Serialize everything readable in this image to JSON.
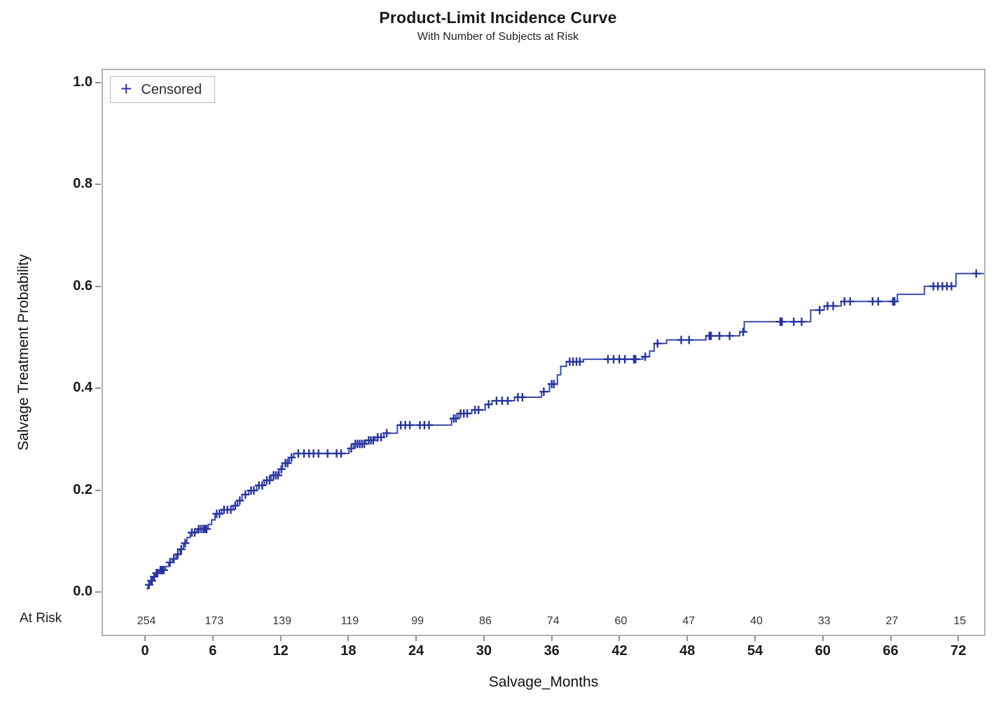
{
  "title": "Product-Limit Incidence Curve",
  "subtitle": "With Number of Subjects at Risk",
  "legend": {
    "marker": "+",
    "label": "Censored"
  },
  "colors": {
    "curve": "#3a4aae",
    "censor": "#2734a0",
    "frame": "#b3b3b3",
    "tick": "#8f8f8f",
    "text": "#1a1a1a"
  },
  "chart_data": {
    "type": "line",
    "subtype": "step-incidence-curve",
    "title": "Product-Limit Incidence Curve",
    "subtitle": "With Number of Subjects at Risk",
    "xlabel": "Salvage_Months",
    "ylabel": "Salvage Treatment Probability",
    "xlim": [
      -3.85,
      74.4
    ],
    "ylim": [
      -0.0866,
      1.0275
    ],
    "grid": false,
    "legend_position": "inside-top-left",
    "x_ticks": [
      0,
      6,
      12,
      18,
      24,
      30,
      36,
      42,
      48,
      54,
      60,
      66,
      72
    ],
    "y_ticks": [
      {
        "value": 1.0,
        "label": "1.0"
      },
      {
        "value": 0.8,
        "label": "0.8"
      },
      {
        "value": 0.6,
        "label": "0.6"
      },
      {
        "value": 0.4,
        "label": "0.4"
      },
      {
        "value": 0.2,
        "label": "0.2"
      },
      {
        "value": 0.0,
        "label": "0.0"
      }
    ],
    "at_risk_label": "At Risk",
    "at_risk": [
      254,
      173,
      139,
      119,
      99,
      86,
      74,
      60,
      47,
      40,
      33,
      27,
      15
    ],
    "steps": [
      [
        0.0,
        0.004
      ],
      [
        0.15,
        0.012
      ],
      [
        0.35,
        0.02
      ],
      [
        0.6,
        0.028
      ],
      [
        0.8,
        0.035
      ],
      [
        1.15,
        0.041
      ],
      [
        1.7,
        0.048
      ],
      [
        2.0,
        0.056
      ],
      [
        2.3,
        0.063
      ],
      [
        2.65,
        0.072
      ],
      [
        3.0,
        0.082
      ],
      [
        3.3,
        0.094
      ],
      [
        3.6,
        0.105
      ],
      [
        3.9,
        0.115
      ],
      [
        4.5,
        0.122
      ],
      [
        5.5,
        0.131
      ],
      [
        5.8,
        0.14
      ],
      [
        6.1,
        0.152
      ],
      [
        6.7,
        0.16
      ],
      [
        7.7,
        0.168
      ],
      [
        8.1,
        0.178
      ],
      [
        8.5,
        0.19
      ],
      [
        9.1,
        0.198
      ],
      [
        9.8,
        0.208
      ],
      [
        10.5,
        0.218
      ],
      [
        11.1,
        0.228
      ],
      [
        11.8,
        0.24
      ],
      [
        12.1,
        0.252
      ],
      [
        12.7,
        0.263
      ],
      [
        13.1,
        0.271
      ],
      [
        18.0,
        0.281
      ],
      [
        18.4,
        0.29
      ],
      [
        19.5,
        0.297
      ],
      [
        20.3,
        0.303
      ],
      [
        21.1,
        0.311
      ],
      [
        22.3,
        0.327
      ],
      [
        27.1,
        0.34
      ],
      [
        27.7,
        0.35
      ],
      [
        28.9,
        0.357
      ],
      [
        30.1,
        0.368
      ],
      [
        30.7,
        0.375
      ],
      [
        32.7,
        0.382
      ],
      [
        35.1,
        0.393
      ],
      [
        35.8,
        0.408
      ],
      [
        36.5,
        0.426
      ],
      [
        36.8,
        0.443
      ],
      [
        37.3,
        0.452
      ],
      [
        38.8,
        0.457
      ],
      [
        44.1,
        0.462
      ],
      [
        44.7,
        0.473
      ],
      [
        45.1,
        0.488
      ],
      [
        46.2,
        0.495
      ],
      [
        49.7,
        0.503
      ],
      [
        52.7,
        0.511
      ],
      [
        53.1,
        0.531
      ],
      [
        59.0,
        0.554
      ],
      [
        60.2,
        0.562
      ],
      [
        61.7,
        0.571
      ],
      [
        66.7,
        0.585
      ],
      [
        69.1,
        0.601
      ],
      [
        71.9,
        0.626
      ],
      [
        74.4,
        0.626
      ]
    ],
    "censors": [
      [
        0.25,
        0.012
      ],
      [
        0.45,
        0.02
      ],
      [
        0.5,
        0.02
      ],
      [
        0.7,
        0.028
      ],
      [
        0.9,
        0.035
      ],
      [
        1.0,
        0.035
      ],
      [
        1.25,
        0.041
      ],
      [
        1.4,
        0.041
      ],
      [
        1.55,
        0.041
      ],
      [
        2.1,
        0.056
      ],
      [
        2.45,
        0.063
      ],
      [
        2.8,
        0.072
      ],
      [
        3.1,
        0.082
      ],
      [
        3.45,
        0.094
      ],
      [
        4.05,
        0.115
      ],
      [
        4.3,
        0.115
      ],
      [
        4.65,
        0.122
      ],
      [
        4.85,
        0.122
      ],
      [
        5.05,
        0.122
      ],
      [
        5.2,
        0.122
      ],
      [
        5.35,
        0.122
      ],
      [
        6.25,
        0.152
      ],
      [
        6.5,
        0.152
      ],
      [
        6.9,
        0.16
      ],
      [
        7.2,
        0.16
      ],
      [
        7.5,
        0.16
      ],
      [
        7.9,
        0.168
      ],
      [
        8.3,
        0.178
      ],
      [
        8.8,
        0.19
      ],
      [
        9.3,
        0.198
      ],
      [
        9.55,
        0.198
      ],
      [
        10.0,
        0.208
      ],
      [
        10.3,
        0.208
      ],
      [
        10.7,
        0.218
      ],
      [
        10.95,
        0.218
      ],
      [
        11.3,
        0.228
      ],
      [
        11.5,
        0.228
      ],
      [
        11.7,
        0.228
      ],
      [
        12.0,
        0.24
      ],
      [
        12.35,
        0.252
      ],
      [
        12.55,
        0.252
      ],
      [
        12.9,
        0.263
      ],
      [
        13.5,
        0.271
      ],
      [
        14.0,
        0.271
      ],
      [
        14.45,
        0.271
      ],
      [
        14.85,
        0.271
      ],
      [
        15.3,
        0.271
      ],
      [
        16.1,
        0.271
      ],
      [
        16.9,
        0.271
      ],
      [
        17.3,
        0.271
      ],
      [
        18.2,
        0.281
      ],
      [
        18.55,
        0.29
      ],
      [
        18.75,
        0.29
      ],
      [
        18.95,
        0.29
      ],
      [
        19.15,
        0.29
      ],
      [
        19.35,
        0.29
      ],
      [
        19.75,
        0.297
      ],
      [
        19.95,
        0.297
      ],
      [
        20.15,
        0.297
      ],
      [
        20.55,
        0.303
      ],
      [
        20.85,
        0.303
      ],
      [
        21.35,
        0.311
      ],
      [
        22.6,
        0.327
      ],
      [
        23.0,
        0.327
      ],
      [
        23.4,
        0.327
      ],
      [
        24.3,
        0.327
      ],
      [
        24.7,
        0.327
      ],
      [
        25.1,
        0.327
      ],
      [
        27.3,
        0.34
      ],
      [
        27.5,
        0.34
      ],
      [
        27.9,
        0.35
      ],
      [
        28.2,
        0.35
      ],
      [
        28.5,
        0.35
      ],
      [
        29.2,
        0.357
      ],
      [
        29.5,
        0.357
      ],
      [
        30.4,
        0.368
      ],
      [
        31.1,
        0.375
      ],
      [
        31.6,
        0.375
      ],
      [
        32.1,
        0.375
      ],
      [
        33.0,
        0.382
      ],
      [
        33.4,
        0.382
      ],
      [
        35.3,
        0.393
      ],
      [
        36.0,
        0.408
      ],
      [
        36.2,
        0.408
      ],
      [
        37.6,
        0.452
      ],
      [
        37.9,
        0.452
      ],
      [
        38.2,
        0.452
      ],
      [
        38.5,
        0.452
      ],
      [
        41.0,
        0.457
      ],
      [
        41.5,
        0.457
      ],
      [
        42.0,
        0.457
      ],
      [
        42.5,
        0.457
      ],
      [
        43.3,
        0.457
      ],
      [
        43.45,
        0.457
      ],
      [
        44.3,
        0.462
      ],
      [
        45.4,
        0.488
      ],
      [
        47.5,
        0.495
      ],
      [
        48.2,
        0.495
      ],
      [
        50.0,
        0.503
      ],
      [
        50.15,
        0.503
      ],
      [
        50.9,
        0.503
      ],
      [
        51.8,
        0.503
      ],
      [
        53.0,
        0.511
      ],
      [
        56.3,
        0.531
      ],
      [
        56.45,
        0.531
      ],
      [
        57.5,
        0.531
      ],
      [
        58.2,
        0.531
      ],
      [
        59.8,
        0.554
      ],
      [
        60.5,
        0.562
      ],
      [
        61.0,
        0.562
      ],
      [
        62.0,
        0.571
      ],
      [
        62.5,
        0.571
      ],
      [
        64.5,
        0.571
      ],
      [
        65.0,
        0.571
      ],
      [
        66.3,
        0.571
      ],
      [
        66.45,
        0.571
      ],
      [
        69.9,
        0.601
      ],
      [
        70.3,
        0.601
      ],
      [
        70.7,
        0.601
      ],
      [
        71.1,
        0.601
      ],
      [
        71.5,
        0.601
      ],
      [
        73.7,
        0.626
      ]
    ]
  }
}
